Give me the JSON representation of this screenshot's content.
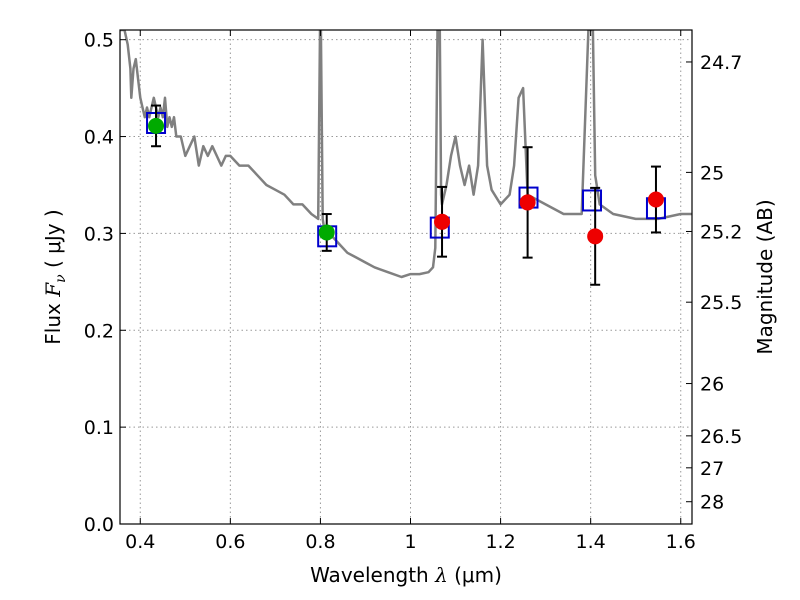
{
  "chart_data": {
    "type": "scatter",
    "xlabel": {
      "prefix": "Wavelength  ",
      "math": "λ",
      "suffix": " (μm)"
    },
    "ylabel": {
      "prefix": "Flux  ",
      "math": "F",
      "sub": "ν",
      "suffix": "  ( μJy )"
    },
    "y2label": "Magnitude (AB)",
    "xlim": [
      0.355,
      1.625
    ],
    "ylim": [
      0.0,
      0.51
    ],
    "grid": true,
    "x_ticks": [
      0.4,
      0.6,
      0.8,
      1.0,
      1.2,
      1.4,
      1.6
    ],
    "x_tick_labels": [
      "0.4",
      "0.6",
      "0.8",
      "1",
      "1.2",
      "1.4",
      "1.6"
    ],
    "y_ticks": [
      0.0,
      0.1,
      0.2,
      0.3,
      0.4,
      0.5
    ],
    "y_tick_labels": [
      "0.0",
      "0.1",
      "0.2",
      "0.3",
      "0.4",
      "0.5"
    ],
    "y2_ticks": [
      {
        "label": "24.7",
        "flux": 0.477
      },
      {
        "label": "25",
        "flux": 0.363
      },
      {
        "label": "25.2",
        "flux": 0.302
      },
      {
        "label": "25.5",
        "flux": 0.229
      },
      {
        "label": "26",
        "flux": 0.145
      },
      {
        "label": "26.5",
        "flux": 0.091
      },
      {
        "label": "27",
        "flux": 0.058
      },
      {
        "label": "28",
        "flux": 0.023
      }
    ],
    "colors": {
      "model": "#808080",
      "observed_optical": "#00aa00",
      "observed_nir": "#ee0000",
      "model_photometry": "#0000cc",
      "grid": "#999999"
    },
    "model_spectrum": {
      "x": [
        0.355,
        0.362,
        0.365,
        0.372,
        0.378,
        0.38,
        0.385,
        0.39,
        0.395,
        0.4,
        0.405,
        0.41,
        0.415,
        0.42,
        0.425,
        0.43,
        0.435,
        0.44,
        0.445,
        0.45,
        0.455,
        0.46,
        0.465,
        0.47,
        0.475,
        0.48,
        0.49,
        0.5,
        0.51,
        0.52,
        0.53,
        0.54,
        0.55,
        0.56,
        0.57,
        0.58,
        0.59,
        0.6,
        0.62,
        0.64,
        0.66,
        0.68,
        0.7,
        0.72,
        0.74,
        0.76,
        0.78,
        0.795,
        0.799,
        0.801,
        0.805,
        0.81,
        0.82,
        0.84,
        0.86,
        0.88,
        0.9,
        0.92,
        0.95,
        0.98,
        1.0,
        1.02,
        1.04,
        1.05,
        1.055,
        1.06,
        1.065,
        1.068,
        1.07,
        1.08,
        1.09,
        1.1,
        1.11,
        1.12,
        1.13,
        1.14,
        1.15,
        1.16,
        1.17,
        1.18,
        1.2,
        1.22,
        1.23,
        1.24,
        1.25,
        1.26,
        1.3,
        1.34,
        1.36,
        1.38,
        1.395,
        1.4,
        1.405,
        1.41,
        1.42,
        1.45,
        1.5,
        1.55,
        1.6,
        1.625
      ],
      "y": [
        0.51,
        0.51,
        0.51,
        0.495,
        0.47,
        0.44,
        0.47,
        0.48,
        0.46,
        0.44,
        0.43,
        0.42,
        0.43,
        0.42,
        0.43,
        0.44,
        0.43,
        0.42,
        0.43,
        0.42,
        0.44,
        0.41,
        0.42,
        0.41,
        0.42,
        0.4,
        0.4,
        0.38,
        0.39,
        0.4,
        0.37,
        0.39,
        0.38,
        0.39,
        0.38,
        0.37,
        0.38,
        0.38,
        0.37,
        0.37,
        0.36,
        0.35,
        0.345,
        0.34,
        0.33,
        0.33,
        0.32,
        0.315,
        0.51,
        0.51,
        0.315,
        0.3,
        0.3,
        0.29,
        0.28,
        0.275,
        0.27,
        0.265,
        0.26,
        0.255,
        0.258,
        0.258,
        0.26,
        0.265,
        0.285,
        0.51,
        0.51,
        0.34,
        0.33,
        0.35,
        0.38,
        0.4,
        0.37,
        0.35,
        0.37,
        0.34,
        0.37,
        0.5,
        0.37,
        0.345,
        0.33,
        0.34,
        0.37,
        0.44,
        0.45,
        0.34,
        0.33,
        0.32,
        0.32,
        0.32,
        0.51,
        0.51,
        0.51,
        0.36,
        0.33,
        0.32,
        0.315,
        0.315,
        0.32,
        0.32
      ]
    },
    "series": [
      {
        "marker": "circle",
        "color": "#00aa00",
        "points": [
          {
            "x": 0.435,
            "y": 0.411,
            "yerr": 0.021
          },
          {
            "x": 0.814,
            "y": 0.301,
            "yerr": 0.019
          }
        ]
      },
      {
        "marker": "circle",
        "color": "#ee0000",
        "points": [
          {
            "x": 1.07,
            "y": 0.312,
            "yerr": 0.036
          },
          {
            "x": 1.26,
            "y": 0.332,
            "yerr": 0.057
          },
          {
            "x": 1.41,
            "y": 0.297,
            "yerr": 0.05
          },
          {
            "x": 1.545,
            "y": 0.335,
            "yerr": 0.034
          }
        ]
      },
      {
        "marker": "square",
        "color": "#0000cc",
        "points": [
          {
            "x": 0.435,
            "y": 0.414
          },
          {
            "x": 0.815,
            "y": 0.297
          },
          {
            "x": 1.065,
            "y": 0.306
          },
          {
            "x": 1.262,
            "y": 0.337
          },
          {
            "x": 1.403,
            "y": 0.334
          },
          {
            "x": 1.545,
            "y": 0.326
          }
        ]
      }
    ]
  }
}
